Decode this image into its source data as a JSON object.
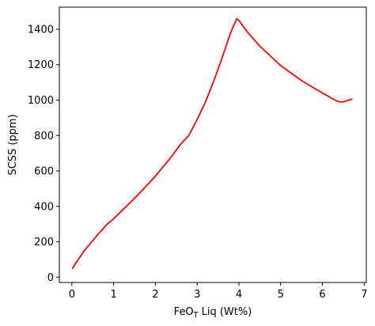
{
  "chart_data": {
    "type": "line",
    "title": "",
    "xlabel": "FeO",
    "xlabel_subscript": "T",
    "xlabel_suffix": " Liq (Wt%)",
    "ylabel": "SCSS (ppm)",
    "xlim": [
      -0.3,
      7.05
    ],
    "ylim": [
      -30,
      1525
    ],
    "xticks": [
      0,
      1,
      2,
      3,
      4,
      5,
      6,
      7
    ],
    "yticks": [
      0,
      200,
      400,
      600,
      800,
      1000,
      1200,
      1400
    ],
    "grid": false,
    "legend": "none",
    "series": [
      {
        "color": "#ff0000",
        "x": [
          0.02,
          0.05,
          0.3,
          0.6,
          0.85,
          1.0,
          1.5,
          2.0,
          2.4,
          2.6,
          2.7,
          2.8,
          3.0,
          3.2,
          3.4,
          3.6,
          3.8,
          3.95,
          4.0,
          4.2,
          4.5,
          5.0,
          5.5,
          6.0,
          6.3,
          6.4,
          6.5,
          6.7
        ],
        "y": [
          50,
          65,
          150,
          235,
          300,
          330,
          445,
          570,
          685,
          750,
          775,
          800,
          890,
          990,
          1110,
          1240,
          1380,
          1460,
          1450,
          1385,
          1305,
          1195,
          1110,
          1040,
          1000,
          990,
          990,
          1005
        ]
      }
    ]
  }
}
